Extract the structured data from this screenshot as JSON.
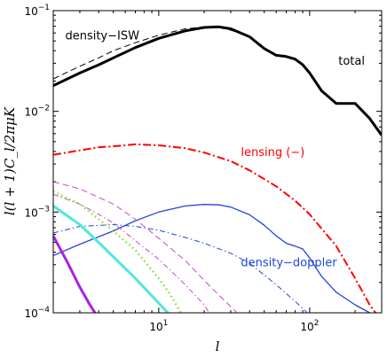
{
  "chart_data": {
    "type": "line",
    "xlabel": "l",
    "ylabel": "l(l + 1)C_l/2πμK",
    "xscale": "log",
    "yscale": "log",
    "xlim": [
      2,
      300
    ],
    "ylim": [
      0.0001,
      0.1
    ],
    "x_ticks": [
      {
        "value": 10,
        "base": "10",
        "exp": "1"
      },
      {
        "value": 100,
        "base": "10",
        "exp": "2"
      }
    ],
    "y_ticks": [
      {
        "value": 0.0001,
        "base": "10",
        "exp": "−4"
      },
      {
        "value": 0.001,
        "base": "10",
        "exp": "−3"
      },
      {
        "value": 0.01,
        "base": "10",
        "exp": "−2"
      },
      {
        "value": 0.1,
        "base": "10",
        "exp": "−1"
      }
    ],
    "annotations": [
      {
        "text": "density−ISW",
        "x": 2.4,
        "y": 0.052,
        "color": "#000000"
      },
      {
        "text": "total",
        "x": 155,
        "y": 0.029,
        "color": "#000000"
      },
      {
        "text": "lensing (−)",
        "x": 35,
        "y": 0.0036,
        "color": "#ff0000"
      },
      {
        "text": "density−doppler",
        "x": 35,
        "y": 0.00029,
        "color": "#2244dd"
      }
    ],
    "series": [
      {
        "color": "#000000",
        "width": 3,
        "dash": "",
        "x": [
          2,
          3,
          4,
          5,
          7,
          10,
          15,
          20,
          25,
          30,
          40,
          50,
          60,
          70,
          80,
          90,
          100,
          120,
          150,
          200,
          250,
          300
        ],
        "y": [
          0.018,
          0.024,
          0.029,
          0.034,
          0.043,
          0.053,
          0.063,
          0.068,
          0.069,
          0.066,
          0.055,
          0.042,
          0.036,
          0.035,
          0.033,
          0.029,
          0.024,
          0.016,
          0.012,
          0.012,
          0.0085,
          0.0058
        ]
      },
      {
        "color": "#000000",
        "width": 1,
        "dash": "7,4",
        "x": [
          2,
          3,
          4,
          5,
          7,
          10,
          15,
          20,
          25,
          30,
          40
        ],
        "y": [
          0.021,
          0.028,
          0.034,
          0.04,
          0.048,
          0.057,
          0.066,
          0.069,
          0.068,
          0.064,
          0.055
        ]
      },
      {
        "color": "#ff0000",
        "width": 2,
        "dash": "9,3,2,3",
        "x": [
          2,
          3,
          4,
          5,
          7,
          10,
          15,
          20,
          30,
          40,
          60,
          80,
          100,
          150,
          200,
          250,
          280
        ],
        "y": [
          0.0037,
          0.0041,
          0.0044,
          0.0045,
          0.0047,
          0.0046,
          0.0043,
          0.0039,
          0.0032,
          0.0026,
          0.0018,
          0.0013,
          0.00095,
          0.00046,
          0.00022,
          0.00012,
          9.5e-05
        ]
      },
      {
        "color": "#2244dd",
        "width": 1.3,
        "dash": "",
        "x": [
          2,
          3,
          5,
          7,
          10,
          15,
          20,
          25,
          30,
          40,
          50,
          60,
          70,
          80,
          90,
          100,
          120,
          150,
          200,
          250,
          280
        ],
        "y": [
          0.00037,
          0.00048,
          0.00065,
          0.00082,
          0.001,
          0.00115,
          0.00119,
          0.00118,
          0.00112,
          0.00094,
          0.00074,
          0.00058,
          0.00049,
          0.00046,
          0.00043,
          0.00035,
          0.00023,
          0.00016,
          0.00012,
          0.0001,
          8.75e-05
        ]
      },
      {
        "color": "#2244dd",
        "width": 1,
        "dash": "6,3,1.5,3",
        "x": [
          2,
          3,
          5,
          7,
          10,
          15,
          20,
          30,
          40,
          60,
          80,
          100,
          120
        ],
        "y": [
          0.00062,
          0.00072,
          0.00075,
          0.00072,
          0.00066,
          0.00056,
          0.00049,
          0.00039,
          0.00031,
          0.00019,
          0.00013,
          9.5e-05,
          7e-05
        ]
      },
      {
        "color": "#cc44cc",
        "width": 1,
        "dash": "7,4",
        "x": [
          2,
          3,
          4,
          5,
          7,
          10,
          15,
          20,
          25,
          30,
          35
        ],
        "y": [
          0.002,
          0.0017,
          0.0014,
          0.0012,
          0.00085,
          0.00055,
          0.00033,
          0.00021,
          0.00015,
          0.000115,
          9.2e-05
        ]
      },
      {
        "color": "#cc44cc",
        "width": 1,
        "dash": "6,3,1.5,3",
        "x": [
          2,
          3,
          4,
          5,
          7,
          10,
          15,
          20,
          22
        ],
        "y": [
          0.0015,
          0.0012,
          0.00095,
          0.00078,
          0.00052,
          0.00034,
          0.00019,
          0.00012,
          9.5e-05
        ]
      },
      {
        "color": "#7fe020",
        "width": 2.4,
        "dash": "1.5,3.5",
        "x": [
          2,
          3,
          4,
          5,
          7,
          10,
          12,
          14
        ],
        "y": [
          0.0016,
          0.0012,
          0.00085,
          0.00065,
          0.00042,
          0.00022,
          0.00015,
          0.0001
        ]
      },
      {
        "color": "#50e8d8",
        "width": 3,
        "dash": "",
        "x": [
          2,
          3,
          4,
          5,
          7,
          10,
          12.5
        ],
        "y": [
          0.00115,
          0.00075,
          0.0005,
          0.00036,
          0.00022,
          0.000125,
          8.75e-05
        ]
      },
      {
        "color": "#aa22dd",
        "width": 3,
        "dash": "",
        "x": [
          2,
          2.5,
          3,
          3.5,
          4
        ],
        "y": [
          0.00058,
          0.00031,
          0.00018,
          0.00012,
          8.75e-05
        ]
      }
    ]
  }
}
